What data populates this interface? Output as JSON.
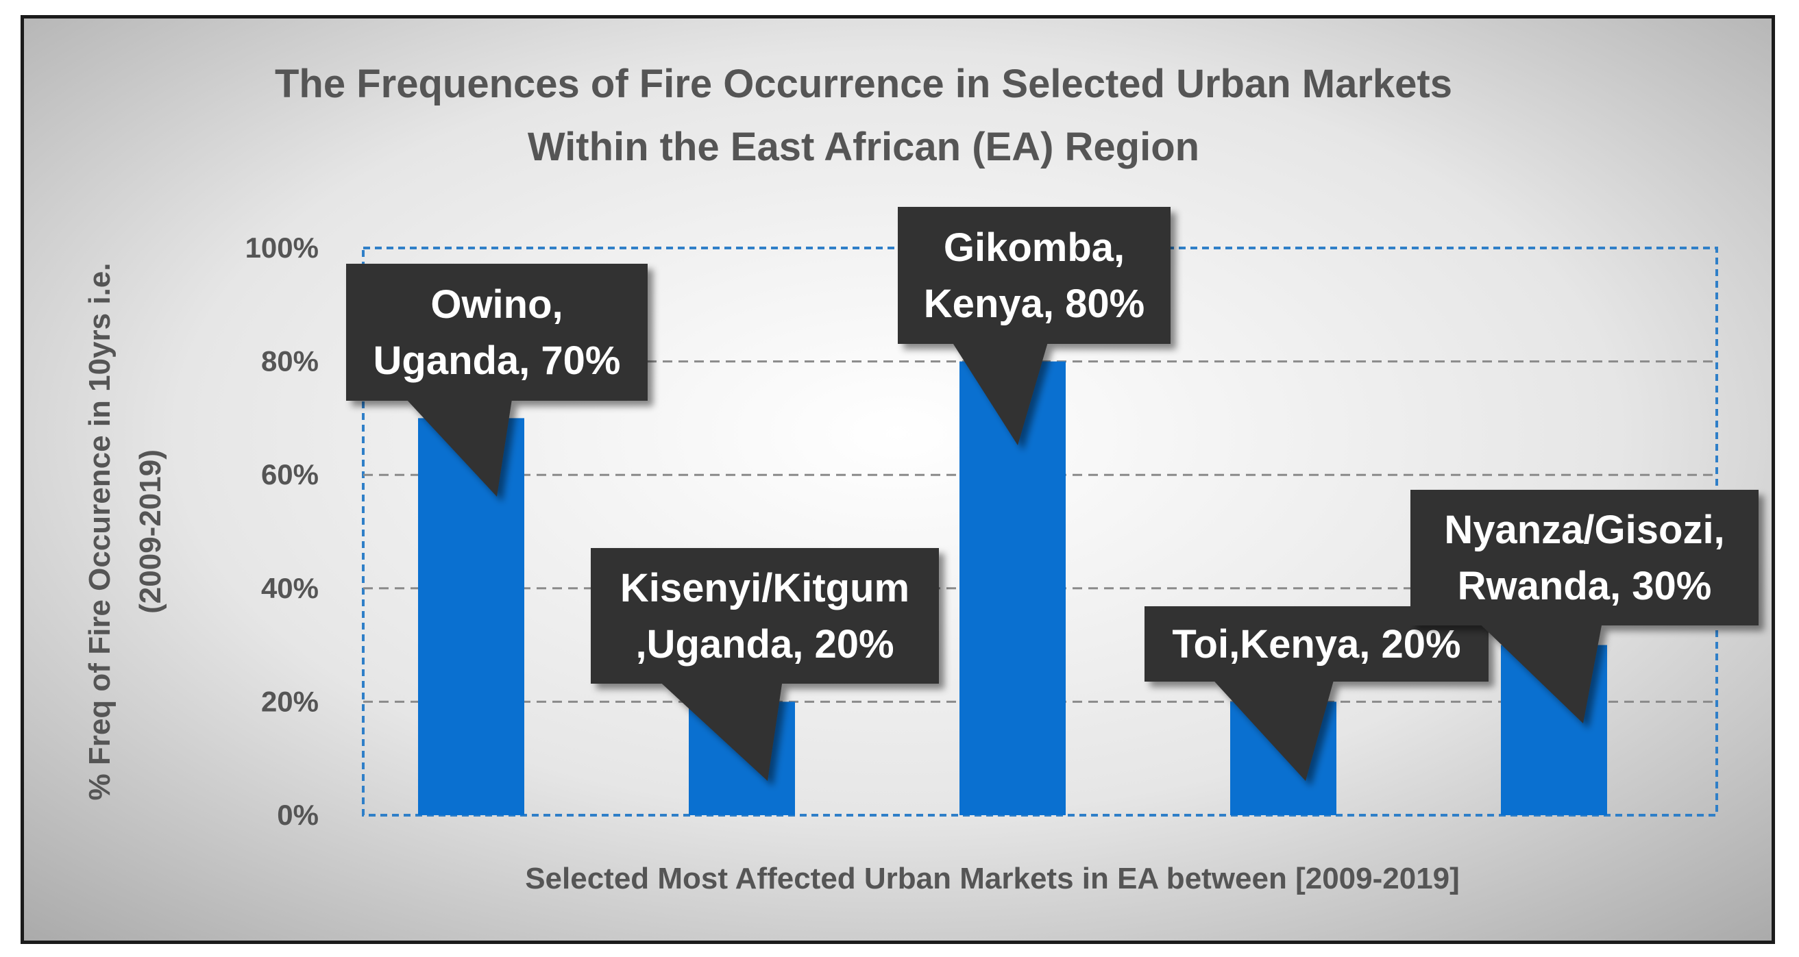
{
  "chart_data": {
    "type": "bar",
    "title": [
      "The Frequences of Fire Occurrence in Selected Urban Markets",
      "Within the East African (EA) Region"
    ],
    "xlabel": "Selected Most Affected Urban Markets in EA between [2009-2019]",
    "ylabel": [
      "% Freq of Fire Occurence in 10yrs i.e.",
      "(2009-2019)"
    ],
    "ylim": [
      0,
      100
    ],
    "yticks": [
      "0%",
      "20%",
      "40%",
      "60%",
      "80%",
      "100%"
    ],
    "categories": [
      "Owino, Uganda",
      "Kisenyi/Kitgum ,Uganda",
      "Gikomba, Kenya",
      "Toi,Kenya",
      "Nyanza/Gisozi, Rwanda"
    ],
    "values": [
      70,
      20,
      80,
      20,
      30
    ],
    "data_labels": [
      [
        "Owino,",
        "Uganda, 70%"
      ],
      [
        "Kisenyi/Kitgum",
        ",Uganda, 20%"
      ],
      [
        "Gikomba,",
        "Kenya, 80%"
      ],
      [
        "Toi,Kenya, 20%"
      ],
      [
        "Nyanza/Gisozi,",
        "Rwanda, 30%"
      ]
    ],
    "grid": true,
    "bar_color": "#0a70d0",
    "callout_color": "#333333"
  }
}
